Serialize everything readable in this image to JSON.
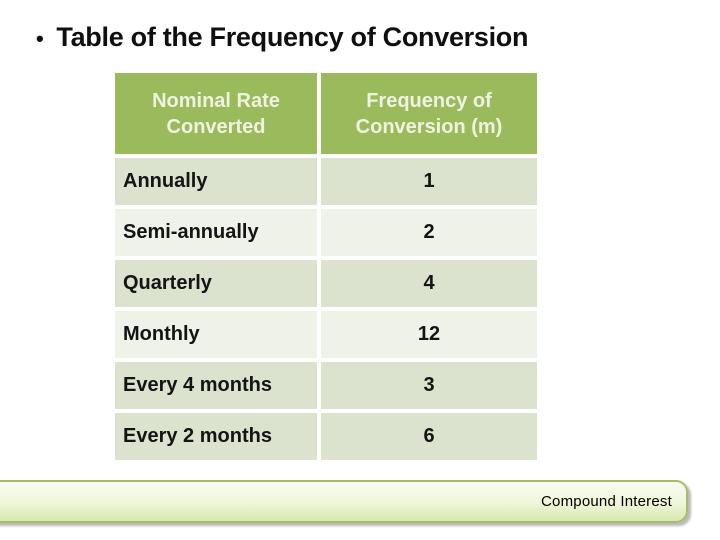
{
  "slide": {
    "title": {
      "bullet": "•",
      "text": "Table of the Frequency of Conversion"
    },
    "table": {
      "columns": [
        "Nominal Rate Converted",
        "Frequency of Conversion (m)"
      ],
      "rows": [
        {
          "label": "Annually",
          "value": "1"
        },
        {
          "label": "Semi-annually",
          "value": "2"
        },
        {
          "label": "Quarterly",
          "value": "4"
        },
        {
          "label": "Monthly",
          "value": "12"
        },
        {
          "label": "Every 4 months",
          "value": "3"
        },
        {
          "label": "Every 2 months",
          "value": "6"
        }
      ]
    },
    "footer": {
      "label": "Compound Interest"
    },
    "colors": {
      "table_header_bg": "#9bba5b",
      "table_header_text": "#eff3e1",
      "row_band_green": "#dbe3ce",
      "row_band_light": "#eff2e8",
      "title_text": "#0f0f0f",
      "footer_border": "#a6bc6c",
      "footer_gradient_top": "#f9fcf1",
      "footer_gradient_bottom": "#d7e9ae"
    }
  },
  "chart_data": {
    "type": "table",
    "title": "Table of the Frequency of Conversion",
    "columns": [
      "Nominal Rate Converted",
      "Frequency of Conversion (m)"
    ],
    "rows": [
      [
        "Annually",
        1
      ],
      [
        "Semi-annually",
        2
      ],
      [
        "Quarterly",
        4
      ],
      [
        "Monthly",
        12
      ],
      [
        "Every 4 months",
        3
      ],
      [
        "Every 2 months",
        6
      ]
    ]
  }
}
